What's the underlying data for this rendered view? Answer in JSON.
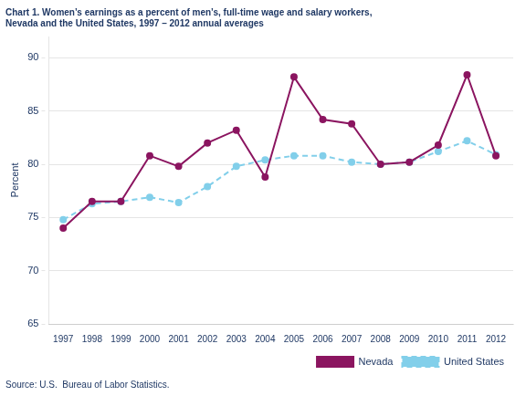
{
  "chart_data": {
    "type": "line",
    "title": "Chart 1. Women’s earnings as a percent of men’s, full-time wage and salary workers,\nNevada and the United States, 1997 – 2012 annual averages",
    "ylabel": "Percent",
    "source": "Source: U.S.  Bureau of Labor Statistics.",
    "x": [
      1997,
      1998,
      1999,
      2000,
      2001,
      2002,
      2003,
      2004,
      2005,
      2006,
      2007,
      2008,
      2009,
      2010,
      2011,
      2012
    ],
    "series": [
      {
        "name": "Nevada",
        "color": "#8B1560",
        "line_style": "solid",
        "marker": "circle",
        "values": [
          74.0,
          76.5,
          76.5,
          80.8,
          79.8,
          82.0,
          83.2,
          78.8,
          88.2,
          84.2,
          83.8,
          80.0,
          80.2,
          81.8,
          88.4,
          80.8
        ]
      },
      {
        "name": "United States",
        "color": "#82CFEA",
        "line_style": "dashed",
        "marker": "circle",
        "values": [
          74.8,
          76.3,
          76.5,
          76.9,
          76.4,
          77.9,
          79.8,
          80.4,
          80.8,
          80.8,
          80.2,
          80.0,
          80.2,
          81.2,
          82.2,
          80.9
        ]
      }
    ],
    "xlim": [
      1996.5,
      2012.6
    ],
    "xticks": [
      1997,
      1998,
      1999,
      2000,
      2001,
      2002,
      2003,
      2004,
      2005,
      2006,
      2007,
      2008,
      2009,
      2010,
      2011,
      2012
    ],
    "ylim": [
      65,
      92
    ],
    "yticks": [
      65,
      70,
      75,
      80,
      85,
      90
    ],
    "grid": "y",
    "legend": "bottom"
  }
}
